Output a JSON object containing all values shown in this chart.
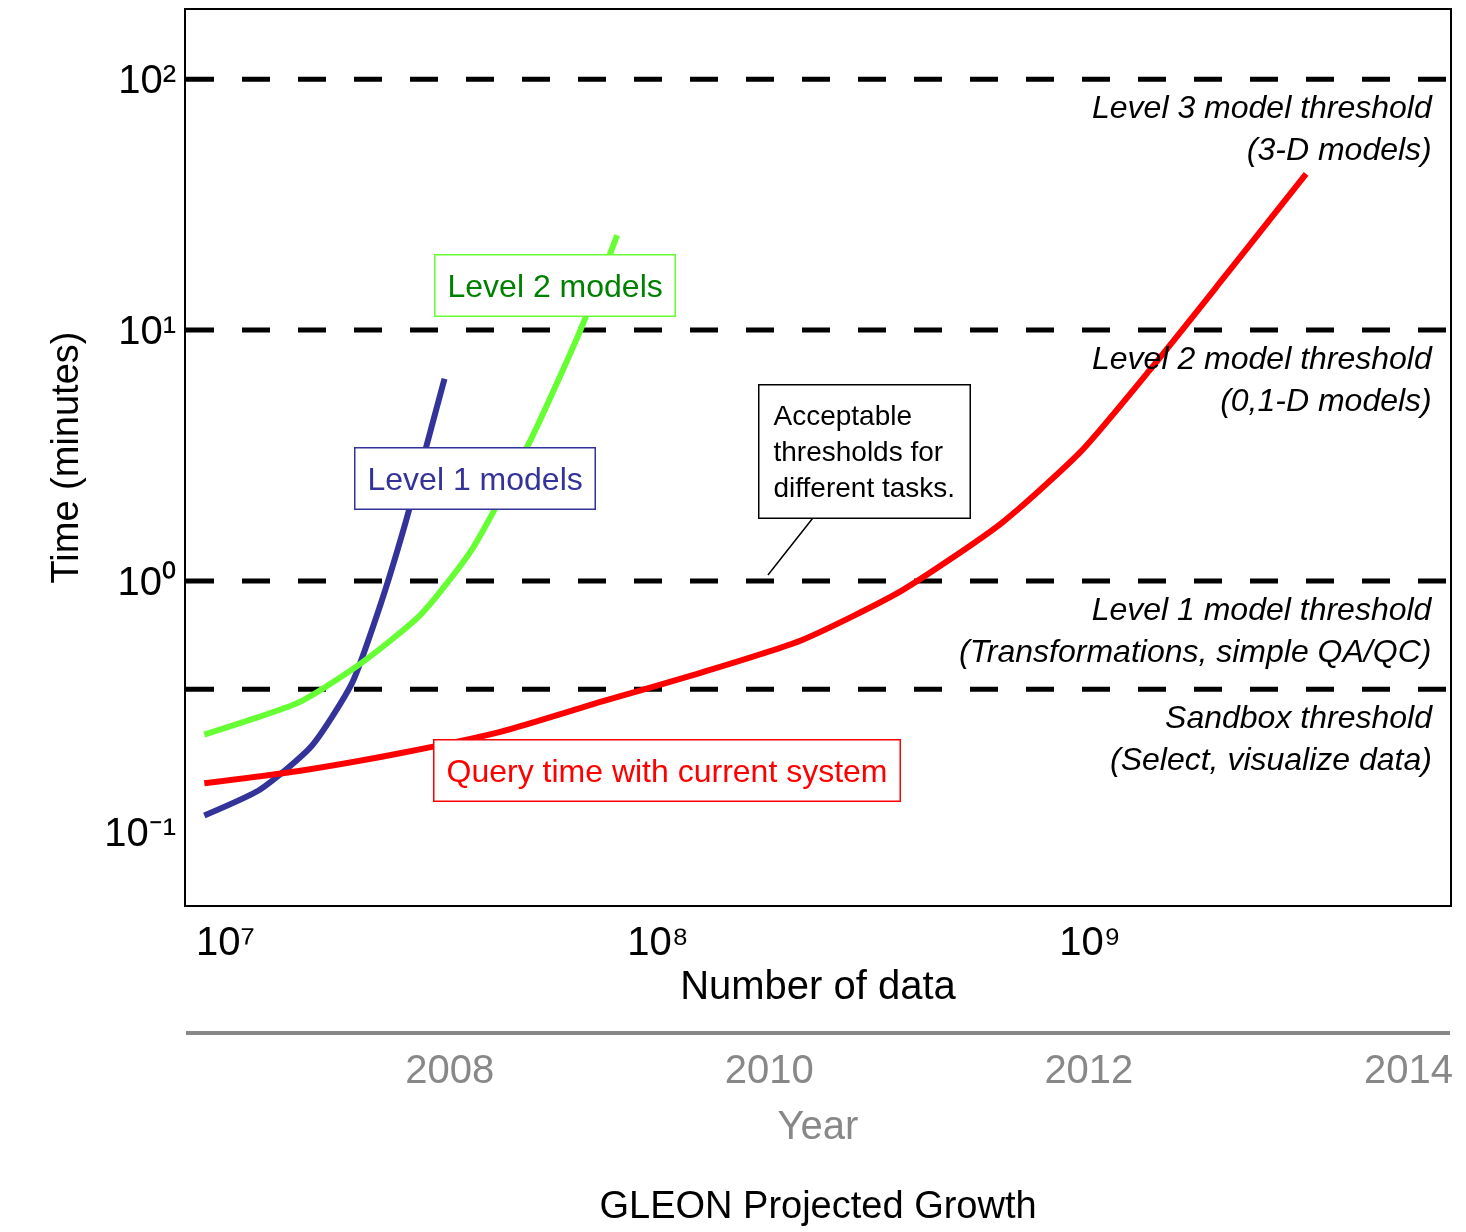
{
  "chart_data": {
    "type": "line",
    "title": "GLEON Projected Growth",
    "xlabel": "Number of data",
    "x2label": "Year",
    "ylabel": "Time (minutes)",
    "log": "xy",
    "grid": false,
    "xlim": [
      8100000,
      6800000000
    ],
    "xticks": [
      {
        "value": 10000000,
        "label": "10⁷"
      },
      {
        "value": 100000000,
        "label": "10⁸"
      },
      {
        "value": 1000000000,
        "label": "10⁹"
      }
    ],
    "x2lim": [
      2006.35,
      2014.26
    ],
    "x2ticks": [
      2008,
      2010,
      2012,
      2014
    ],
    "ylim": [
      0.051,
      189
    ],
    "yticks": [
      {
        "value": 0.1,
        "label": "10⁻¹"
      },
      {
        "value": 1,
        "label": "10⁰"
      },
      {
        "value": 10,
        "label": "10¹"
      },
      {
        "value": 100,
        "label": "10²"
      }
    ],
    "series": [
      {
        "name": "Level 1 models",
        "color": "#333399",
        "x": [
          8930000,
          12000000,
          15800000,
          19600000,
          22800000,
          25800000,
          32100000
        ],
        "values": [
          0.116,
          0.147,
          0.219,
          0.39,
          0.8,
          1.6,
          6.4
        ]
      },
      {
        "name": "Level 2 models",
        "color": "#66ff33",
        "x": [
          8930000,
          14900000,
          20600000,
          28200000,
          37100000,
          50800000,
          66200000,
          80500000
        ],
        "values": [
          0.244,
          0.33,
          0.47,
          0.73,
          1.33,
          3.65,
          10,
          23.9
        ]
      },
      {
        "name": "Query time with current system",
        "color": "#ff0000",
        "x": [
          8930000,
          14900000,
          25500000,
          43200000,
          74000000,
          125600000,
          215000000,
          365000000,
          624000000,
          955000000,
          1390000000,
          2010000000,
          3160000000
        ],
        "values": [
          0.156,
          0.175,
          0.206,
          0.25,
          0.33,
          0.43,
          0.58,
          0.91,
          1.7,
          3.3,
          7.1,
          15.7,
          42
        ]
      }
    ],
    "ref_lines": [
      {
        "axis": "y",
        "value": 100,
        "label": "Level 3 model threshold\n(3-D models)",
        "color": "#000000",
        "line_style": "dashed"
      },
      {
        "axis": "y",
        "value": 10,
        "label": "Level 2 model threshold\n(0,1-D models)",
        "color": "#000000",
        "line_style": "dashed"
      },
      {
        "axis": "y",
        "value": 1,
        "label": "Level 1 model threshold\n(Transformations, simple QA/QC)",
        "color": "#000000",
        "line_style": "dashed"
      },
      {
        "axis": "y",
        "value": 0.37,
        "label": "Sandbox threshold\n(Select, visualize data)",
        "color": "#000000",
        "line_style": "dashed"
      }
    ],
    "annotations": [
      "Acceptable\nthresholds for\ndifferent tasks."
    ]
  }
}
